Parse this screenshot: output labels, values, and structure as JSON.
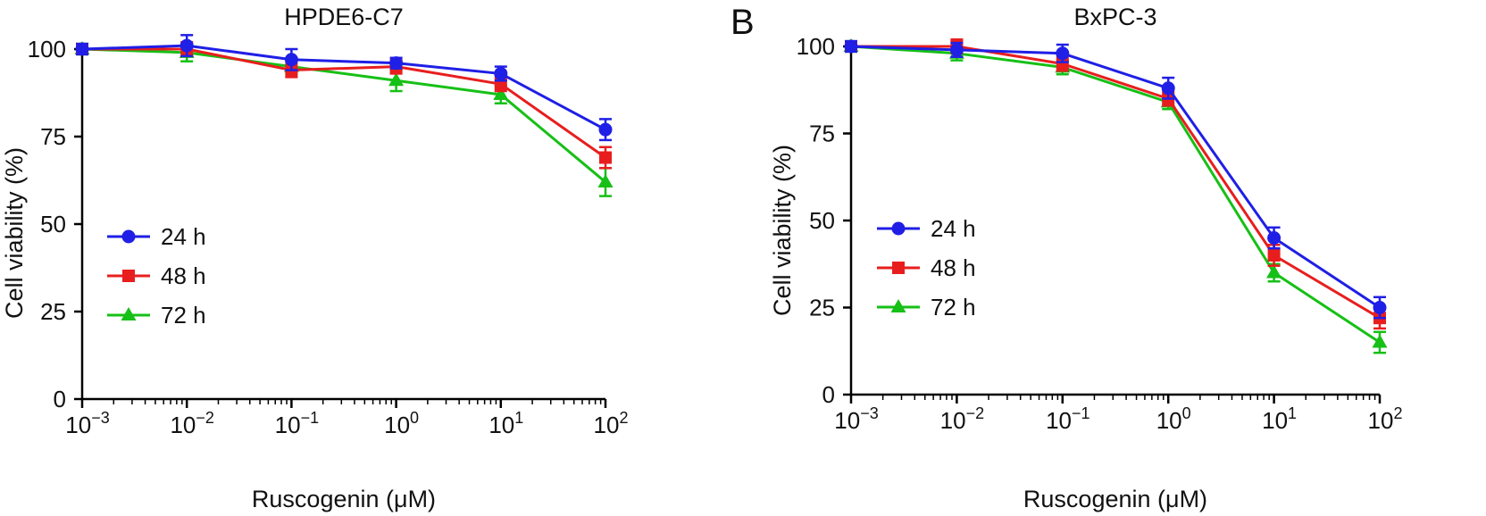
{
  "chart_data": [
    {
      "type": "line",
      "panel_label": "",
      "title": "HPDE6-C7",
      "xlabel": "Ruscogenin (μM)",
      "ylabel": "Cell viability (%)",
      "x_scale": "log",
      "x": [
        0.001,
        0.01,
        0.1,
        1,
        10,
        100
      ],
      "x_tick_labels": [
        {
          "base": "10",
          "exp": "−3"
        },
        {
          "base": "10",
          "exp": "−2"
        },
        {
          "base": "10",
          "exp": "−1"
        },
        {
          "base": "10",
          "exp": "0"
        },
        {
          "base": "10",
          "exp": "1"
        },
        {
          "base": "10",
          "exp": "2"
        }
      ],
      "ylim": [
        0,
        100
      ],
      "y_ticks": [
        0,
        25,
        50,
        75,
        100
      ],
      "legend_position": "center-left",
      "series": [
        {
          "name": "24 h",
          "color": "#1f1fe6",
          "marker": "circle",
          "values": [
            100,
            101,
            97,
            96,
            93,
            77
          ],
          "errors": [
            1.5,
            3,
            3,
            1.5,
            2,
            3
          ]
        },
        {
          "name": "48 h",
          "color": "#e81e1e",
          "marker": "square",
          "values": [
            100,
            100,
            94,
            95,
            90,
            69
          ],
          "errors": [
            1.5,
            2,
            2,
            2,
            2,
            3
          ]
        },
        {
          "name": "72 h",
          "color": "#16c016",
          "marker": "triangle",
          "values": [
            100,
            99,
            95,
            91,
            87,
            62
          ],
          "errors": [
            1.5,
            2.5,
            2,
            3,
            2.5,
            4
          ]
        }
      ]
    },
    {
      "type": "line",
      "panel_label": "B",
      "title": "BxPC-3",
      "xlabel": "Ruscogenin (μM)",
      "ylabel": "Cell viability (%)",
      "x_scale": "log",
      "x": [
        0.001,
        0.01,
        0.1,
        1,
        10,
        100
      ],
      "x_tick_labels": [
        {
          "base": "10",
          "exp": "−3"
        },
        {
          "base": "10",
          "exp": "−2"
        },
        {
          "base": "10",
          "exp": "−1"
        },
        {
          "base": "10",
          "exp": "0"
        },
        {
          "base": "10",
          "exp": "1"
        },
        {
          "base": "10",
          "exp": "2"
        }
      ],
      "ylim": [
        0,
        100
      ],
      "y_ticks": [
        0,
        25,
        50,
        75,
        100
      ],
      "legend_position": "center-left",
      "series": [
        {
          "name": "24 h",
          "color": "#1f1fe6",
          "marker": "circle",
          "values": [
            100,
            99,
            98,
            88,
            45,
            25
          ],
          "errors": [
            1.5,
            2,
            2.5,
            3,
            3,
            3
          ]
        },
        {
          "name": "48 h",
          "color": "#e81e1e",
          "marker": "square",
          "values": [
            100,
            100,
            95,
            85,
            40,
            22
          ],
          "errors": [
            1.5,
            2,
            2,
            2,
            3,
            3
          ]
        },
        {
          "name": "72 h",
          "color": "#16c016",
          "marker": "triangle",
          "values": [
            100,
            98,
            94,
            84,
            35,
            15
          ],
          "errors": [
            1.5,
            2,
            2,
            2,
            2.5,
            3
          ]
        }
      ]
    }
  ]
}
